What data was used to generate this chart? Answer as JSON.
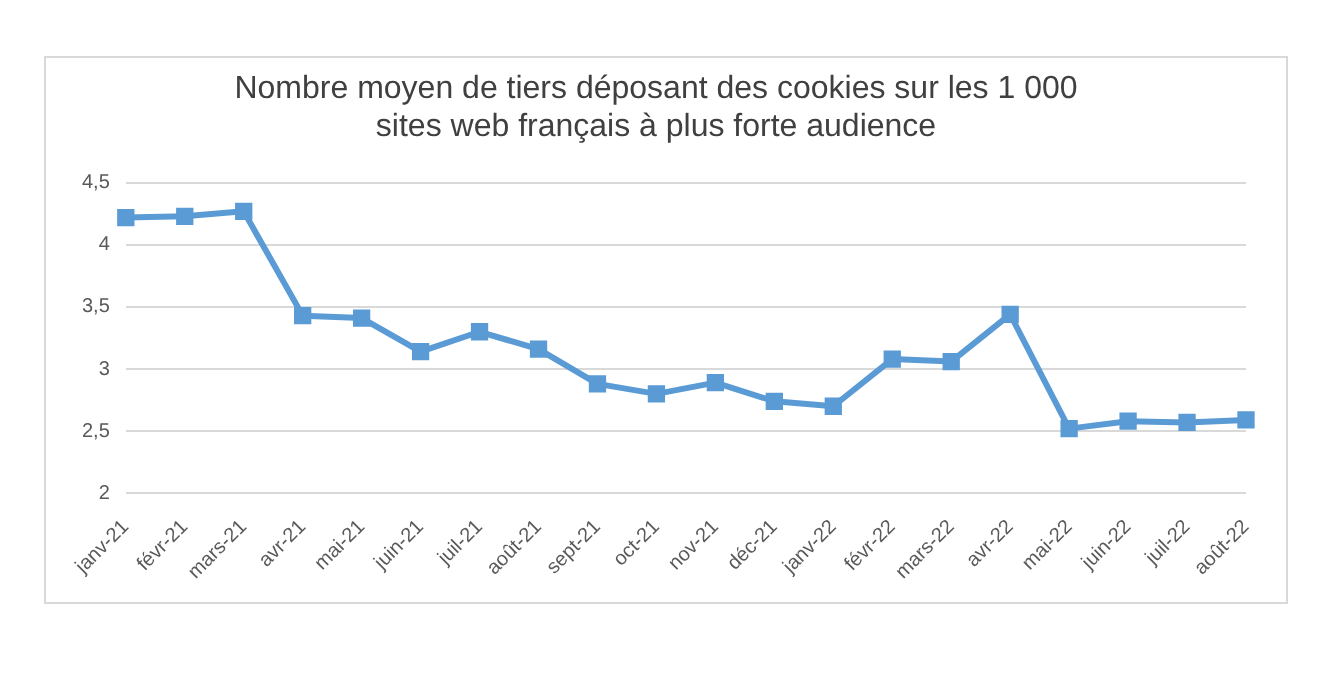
{
  "chart_data": {
    "type": "line",
    "title": [
      "Nombre moyen de tiers déposant des cookies sur les 1 000",
      "sites web français à plus forte audience"
    ],
    "categories": [
      "janv-21",
      "févr-21",
      "mars-21",
      "avr-21",
      "mai-21",
      "juin-21",
      "juil-21",
      "août-21",
      "sept-21",
      "oct-21",
      "nov-21",
      "déc-21",
      "janv-22",
      "févr-22",
      "mars-22",
      "avr-22",
      "mai-22",
      "juin-22",
      "juil-22",
      "août-22"
    ],
    "series": [
      {
        "color": "#5b9bd5",
        "values": [
          4.22,
          4.23,
          4.27,
          3.43,
          3.41,
          3.14,
          3.3,
          3.16,
          2.88,
          2.8,
          2.89,
          2.74,
          2.7,
          3.08,
          3.06,
          3.44,
          2.52,
          2.58,
          2.57,
          2.59
        ]
      }
    ],
    "ylim": [
      2,
      4.5
    ],
    "yticks": [
      2,
      {
        "value": 2.5,
        "label": "2,5"
      },
      3,
      {
        "value": 3.5,
        "label": "3,5"
      },
      4,
      {
        "value": 4.5,
        "label": "4,5"
      }
    ],
    "grid": "y",
    "legend": false,
    "marker": "square",
    "line_style": "solid"
  }
}
